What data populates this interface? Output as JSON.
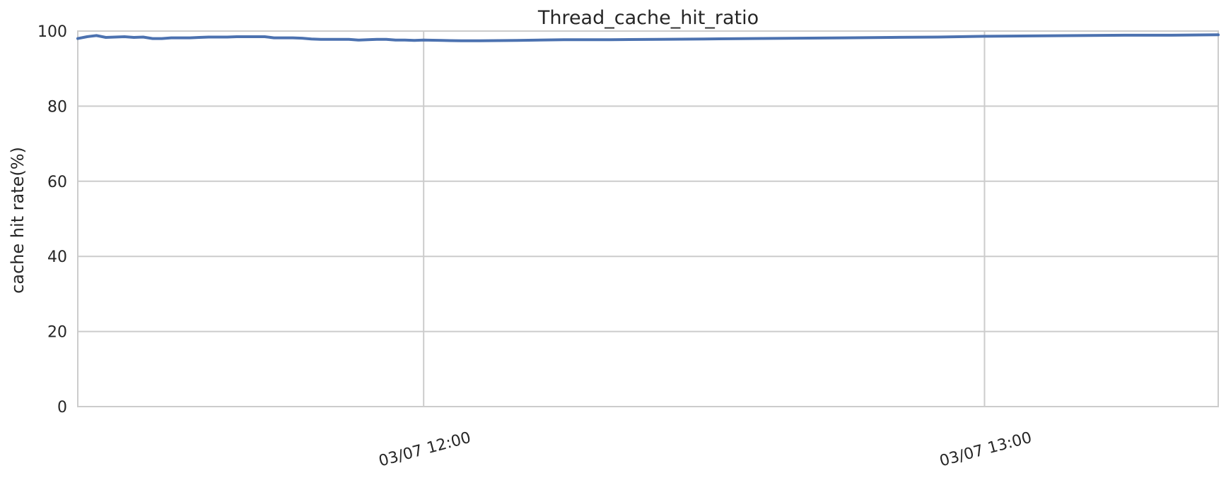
{
  "chart_data": {
    "type": "line",
    "title": "Thread_cache_hit_ratio",
    "xlabel": "",
    "ylabel": "cache hit rate(%)",
    "ylim": [
      0,
      100
    ],
    "xlim": [
      "03/07 11:23",
      "03/07 13:25"
    ],
    "yticks": [
      0,
      20,
      40,
      60,
      80,
      100
    ],
    "xticks": [
      {
        "time": "03/07 12:00",
        "label": "03/07 12:00"
      },
      {
        "time": "03/07 13:00",
        "label": "03/07 13:00"
      }
    ],
    "grid": true,
    "colors": {
      "line": "#4c72b0",
      "grid": "#cccccc",
      "text": "#262626"
    },
    "series": [
      {
        "x": [
          "03/07 11:23",
          "03/07 11:24",
          "03/07 11:25",
          "03/07 11:26",
          "03/07 11:27",
          "03/07 11:28",
          "03/07 11:29",
          "03/07 11:30",
          "03/07 11:31",
          "03/07 11:32",
          "03/07 11:33",
          "03/07 11:34",
          "03/07 11:35",
          "03/07 11:36",
          "03/07 11:37",
          "03/07 11:38",
          "03/07 11:39",
          "03/07 11:40",
          "03/07 11:41",
          "03/07 11:42",
          "03/07 11:43",
          "03/07 11:44",
          "03/07 11:45",
          "03/07 11:46",
          "03/07 11:47",
          "03/07 11:48",
          "03/07 11:49",
          "03/07 11:50",
          "03/07 11:51",
          "03/07 11:52",
          "03/07 11:53",
          "03/07 11:54",
          "03/07 11:55",
          "03/07 11:56",
          "03/07 11:57",
          "03/07 11:58",
          "03/07 11:59",
          "03/07 12:00",
          "03/07 12:02",
          "03/07 12:04",
          "03/07 12:06",
          "03/07 12:10",
          "03/07 12:15",
          "03/07 12:20",
          "03/07 12:25",
          "03/07 12:30",
          "03/07 12:35",
          "03/07 12:40",
          "03/07 12:45",
          "03/07 12:50",
          "03/07 12:55",
          "03/07 13:00",
          "03/07 13:05",
          "03/07 13:10",
          "03/07 13:15",
          "03/07 13:20",
          "03/07 13:25"
        ],
        "y": [
          98.0,
          98.5,
          98.8,
          98.3,
          98.4,
          98.5,
          98.3,
          98.4,
          98.0,
          98.0,
          98.2,
          98.2,
          98.2,
          98.3,
          98.4,
          98.4,
          98.4,
          98.5,
          98.5,
          98.5,
          98.5,
          98.2,
          98.2,
          98.2,
          98.1,
          97.9,
          97.8,
          97.8,
          97.8,
          97.8,
          97.6,
          97.7,
          97.8,
          97.8,
          97.6,
          97.6,
          97.5,
          97.6,
          97.5,
          97.4,
          97.4,
          97.5,
          97.7,
          97.7,
          97.8,
          97.9,
          98.0,
          98.1,
          98.2,
          98.3,
          98.4,
          98.6,
          98.7,
          98.8,
          98.9,
          98.9,
          99.0
        ]
      }
    ]
  }
}
